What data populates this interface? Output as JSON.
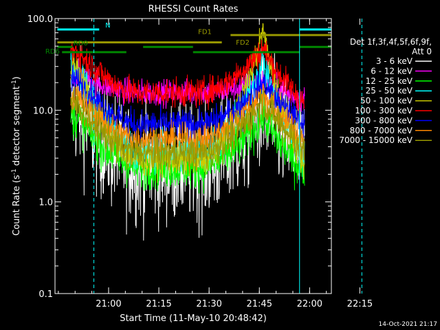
{
  "chart_data": {
    "type": "line",
    "title": "RHESSI Count Rates",
    "xlabel": "Start Time (11-May-10 20:48:42)",
    "ylabel_parts": {
      "main": "Count Rate (s",
      "exp": "-1",
      "rest": " detector segment",
      "exp2": "-1",
      "close": ")"
    },
    "yscale": "log",
    "ylim": [
      0.1,
      100
    ],
    "xlim_min": [
      -4.7,
      77.8
    ],
    "y_ticks": [
      {
        "value": 100,
        "label": "100.0"
      },
      {
        "value": 10,
        "label": "10.0"
      },
      {
        "value": 1,
        "label": "1.0"
      },
      {
        "value": 0.1,
        "label": "0.1"
      }
    ],
    "x_ticks": [
      {
        "t": 11.3,
        "label": "21:00"
      },
      {
        "t": 26.3,
        "label": "21:15"
      },
      {
        "t": 41.3,
        "label": "21:30"
      },
      {
        "t": 56.3,
        "label": "21:45"
      },
      {
        "t": 71.3,
        "label": "22:00"
      },
      {
        "t": 86.3,
        "label": "22:15"
      }
    ],
    "legend_header": [
      "Det 1f,3f,4f,5f,6f,9f,",
      "Att 0"
    ],
    "series": [
      {
        "name": "3 - 6 keV",
        "color": "#ffffff",
        "pre": 10.5,
        "quiet": 2.6,
        "peak": 11,
        "post": 3.2,
        "noise": 0.32
      },
      {
        "name": "6 - 12 keV",
        "color": "#ff00ff",
        "pre": 25,
        "quiet": 15.5,
        "peak": 21,
        "post": 13,
        "noise": 0.07
      },
      {
        "name": "12 - 25 keV",
        "color": "#00ff00",
        "pre": 8.5,
        "quiet": 2.4,
        "peak": 8.8,
        "post": 2.2,
        "noise": 0.12
      },
      {
        "name": "25 - 50 keV",
        "color": "#00ffff",
        "pre": 29,
        "quiet": 3.5,
        "peak": 35,
        "post": 2.9,
        "noise": 0.1
      },
      {
        "name": "50 - 100 keV",
        "color": "#cccc00",
        "pre": 30,
        "quiet": 2.8,
        "peak": 75,
        "post": 2.4,
        "noise": 0.08
      },
      {
        "name": "100 - 300 keV",
        "color": "#ff0000",
        "pre": 44,
        "quiet": 15.5,
        "peak": 48,
        "post": 12,
        "noise": 0.08
      },
      {
        "name": "300 - 800 keV",
        "color": "#0000ff",
        "pre": 21,
        "quiet": 7,
        "peak": 20,
        "post": 7,
        "noise": 0.08
      },
      {
        "name": "800 - 7000 keV",
        "color": "#ff8800",
        "pre": 14,
        "quiet": 4.8,
        "peak": 16,
        "post": 4.8,
        "noise": 0.08
      },
      {
        "name": "7000 - 15000 keV",
        "color": "#999900",
        "pre": 11.5,
        "quiet": 3.4,
        "peak": 13,
        "post": 3.8,
        "noise": 0.1
      }
    ],
    "data_window": {
      "start": 0,
      "end": 69.8
    },
    "flag_bars": [
      {
        "name": "N",
        "color": "#00ffff",
        "y": 76,
        "segments": [
          [
            -4.0,
            8.5
          ],
          [
            68.3,
            77.8
          ]
        ],
        "label_t": 10.3,
        "label_y": 80
      },
      {
        "name": "FD1",
        "color": "#999900",
        "y": 66,
        "segments": [
          [
            47.7,
            77.8
          ]
        ],
        "label_t": 38.0,
        "label_y": 68
      },
      {
        "name": "FD2",
        "color": "#999900",
        "y": 55,
        "segments": [
          [
            -4.0,
            45.1
          ]
        ],
        "label_t": 49.3,
        "label_y": 52
      },
      {
        "name": "RD0",
        "color": "#008800",
        "y": 49,
        "segments": [
          [
            -4.0,
            0.5
          ],
          [
            21.6,
            36.5
          ],
          [
            68.3,
            77.8
          ]
        ],
        "label_t": 0.8,
        "label_y": 51
      },
      {
        "name": "RD6",
        "color": "#008800",
        "y": 43,
        "segments": [
          [
            -2.6,
            16.6
          ],
          [
            36.5,
            68.3
          ]
        ],
        "label_t": -7.6,
        "label_y": 41.5
      }
    ],
    "vlines": [
      {
        "t": -4.7,
        "style": "solid"
      },
      {
        "t": 6.9,
        "style": "dashed"
      },
      {
        "t": 68.3,
        "style": "solid"
      },
      {
        "t": 86.9,
        "style": "dashed"
      }
    ]
  },
  "footer": {
    "timestamp": "14-Oct-2021 21:17"
  }
}
